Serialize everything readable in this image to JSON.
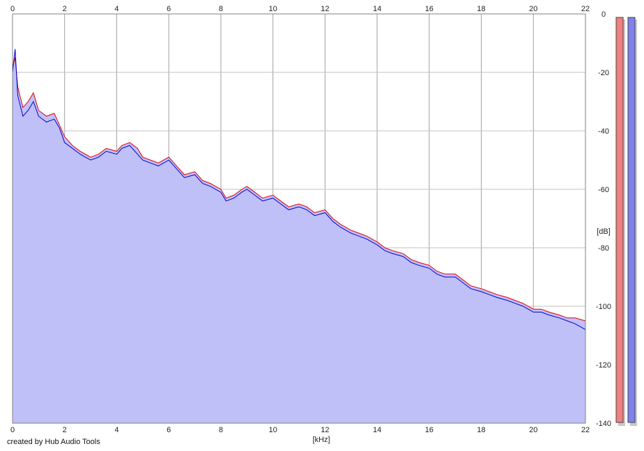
{
  "credit": "created by Hub Audio Tools",
  "chart_data": {
    "type": "area",
    "x_unit_label": "[kHz]",
    "y_unit_label": "[dB]",
    "xlim": [
      0,
      22
    ],
    "ylim": [
      -140,
      0
    ],
    "x_ticks": [
      "0",
      "2",
      "4",
      "6",
      "8",
      "10",
      "12",
      "14",
      "16",
      "18",
      "20",
      "22"
    ],
    "y_ticks": [
      "0",
      "-20",
      "-40",
      "-60",
      "-80",
      "-100",
      "-120",
      "-140"
    ],
    "grid": true,
    "level_meters": [
      {
        "channel": "left",
        "color": "#f08080"
      },
      {
        "channel": "right",
        "color": "#8080ee"
      }
    ],
    "fill_color": "#c0c0f8",
    "series": [
      {
        "color": "#e00000",
        "x": [
          0,
          0.1,
          0.2,
          0.4,
          0.6,
          0.8,
          1.0,
          1.3,
          1.6,
          1.8,
          2.0,
          2.3,
          2.6,
          3.0,
          3.3,
          3.6,
          4.0,
          4.2,
          4.5,
          4.8,
          5.0,
          5.3,
          5.6,
          6.0,
          6.3,
          6.6,
          7.0,
          7.3,
          7.6,
          8.0,
          8.2,
          8.5,
          8.8,
          9.0,
          9.3,
          9.6,
          10.0,
          10.3,
          10.6,
          11.0,
          11.3,
          11.6,
          12.0,
          12.3,
          12.6,
          13.0,
          13.3,
          13.6,
          14.0,
          14.3,
          14.6,
          15.0,
          15.3,
          15.6,
          16.0,
          16.3,
          16.6,
          17.0,
          17.3,
          17.6,
          18.0,
          18.3,
          18.6,
          19.0,
          19.3,
          19.6,
          20.0,
          20.3,
          20.6,
          21.0,
          21.3,
          21.6,
          22.0
        ],
        "y": [
          -18,
          -15,
          -25,
          -32,
          -30,
          -27,
          -33,
          -35,
          -34,
          -38,
          -42,
          -45,
          -47,
          -49,
          -48,
          -46,
          -47,
          -45,
          -44,
          -46,
          -49,
          -50,
          -51,
          -49,
          -52,
          -55,
          -54,
          -57,
          -58,
          -60,
          -63,
          -62,
          -60,
          -59,
          -61,
          -63,
          -62,
          -64,
          -66,
          -65,
          -66,
          -68,
          -67,
          -70,
          -72,
          -74,
          -75,
          -76,
          -78,
          -80,
          -81,
          -82,
          -84,
          -85,
          -86,
          -88,
          -89,
          -89,
          -91,
          -93,
          -94,
          -95,
          -96,
          -97,
          -98,
          -99,
          -101,
          -101,
          -102,
          -103,
          -104,
          -104,
          -105
        ]
      },
      {
        "color": "#0000cc",
        "x": [
          0,
          0.1,
          0.2,
          0.4,
          0.6,
          0.8,
          1.0,
          1.3,
          1.6,
          1.8,
          2.0,
          2.3,
          2.6,
          3.0,
          3.3,
          3.6,
          4.0,
          4.2,
          4.5,
          4.8,
          5.0,
          5.3,
          5.6,
          6.0,
          6.3,
          6.6,
          7.0,
          7.3,
          7.6,
          8.0,
          8.2,
          8.5,
          8.8,
          9.0,
          9.3,
          9.6,
          10.0,
          10.3,
          10.6,
          11.0,
          11.3,
          11.6,
          12.0,
          12.3,
          12.6,
          13.0,
          13.3,
          13.6,
          14.0,
          14.3,
          14.6,
          15.0,
          15.3,
          15.6,
          16.0,
          16.3,
          16.6,
          17.0,
          17.3,
          17.6,
          18.0,
          18.3,
          18.6,
          19.0,
          19.3,
          19.6,
          20.0,
          20.3,
          20.6,
          21.0,
          21.3,
          21.6,
          22.0
        ],
        "y": [
          -20,
          -12,
          -28,
          -35,
          -33,
          -30,
          -35,
          -37,
          -36,
          -39,
          -44,
          -46,
          -48,
          -50,
          -49,
          -47,
          -48,
          -46,
          -45,
          -48,
          -50,
          -51,
          -52,
          -50,
          -53,
          -56,
          -55,
          -58,
          -59,
          -61,
          -64,
          -63,
          -61,
          -60,
          -62,
          -64,
          -63,
          -65,
          -67,
          -66,
          -67,
          -69,
          -68,
          -71,
          -73,
          -75,
          -76,
          -77,
          -79,
          -81,
          -82,
          -83,
          -85,
          -86,
          -87,
          -89,
          -90,
          -90,
          -92,
          -94,
          -95,
          -96,
          -97,
          -98,
          -99,
          -100,
          -102,
          -102,
          -103,
          -104,
          -105,
          -106,
          -108
        ]
      }
    ]
  }
}
